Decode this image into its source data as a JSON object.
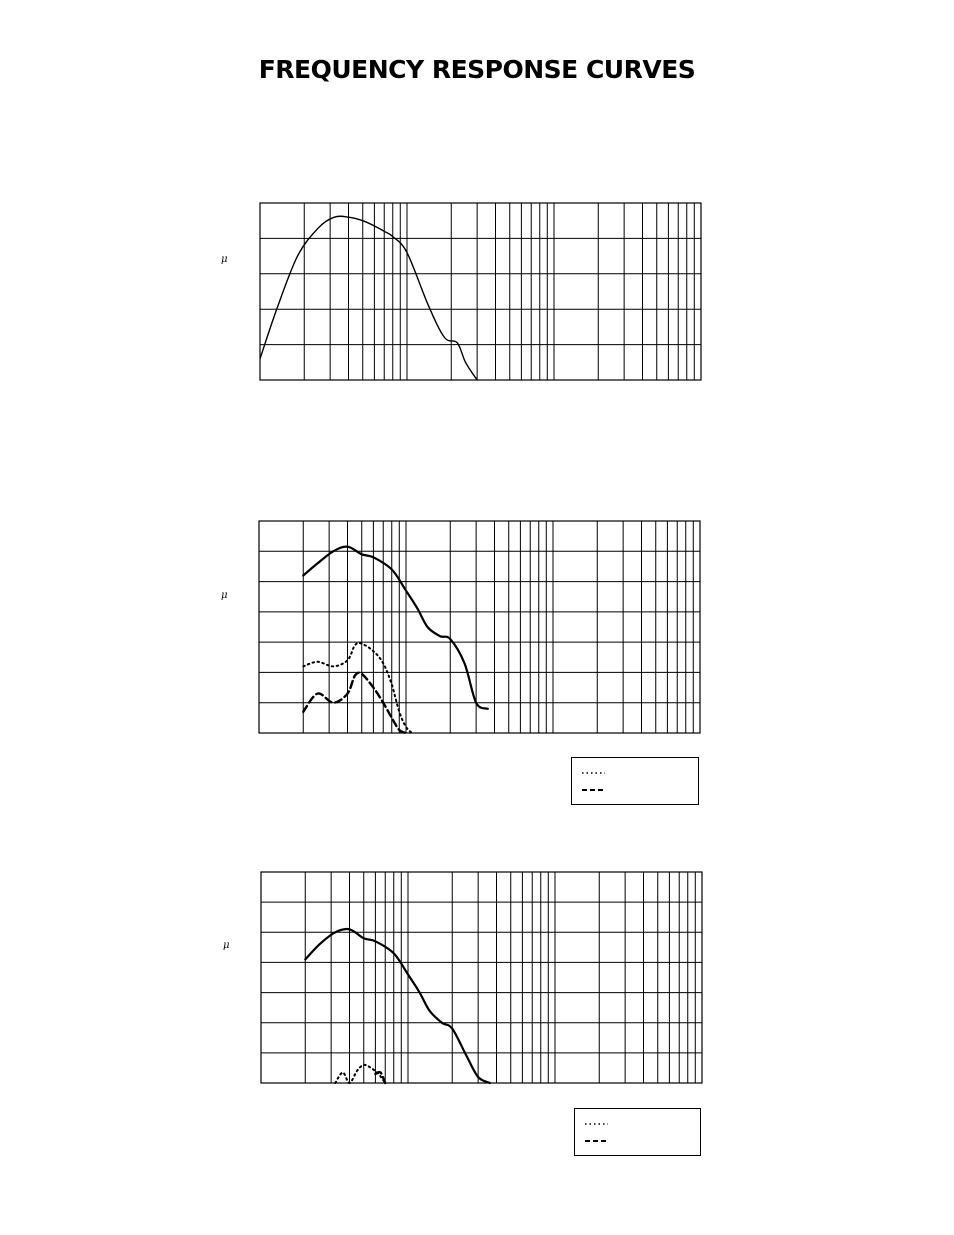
{
  "page": {
    "title": "FREQUENCY RESPONSE CURVES"
  },
  "chart_data": [
    {
      "type": "line",
      "ylabel": "μ",
      "xscale": "log",
      "xlim": [
        1,
        1000
      ],
      "ylim": [
        0,
        5
      ],
      "grid": true,
      "series": [
        {
          "style": "solid",
          "x": [
            1,
            1.3,
            1.8,
            2.5,
            3.2,
            4,
            5,
            6,
            7,
            8,
            10,
            14,
            18,
            22,
            25,
            30
          ],
          "y": [
            0.6,
            2.0,
            3.5,
            4.3,
            4.6,
            4.6,
            4.5,
            4.35,
            4.2,
            4.05,
            3.6,
            2.1,
            1.2,
            1.05,
            0.5,
            0
          ]
        }
      ]
    },
    {
      "type": "line",
      "ylabel": "μ",
      "xscale": "log",
      "xlim": [
        1,
        1000
      ],
      "ylim": [
        0,
        7
      ],
      "grid": true,
      "series": [
        {
          "style": "solid",
          "x": [
            2,
            2.5,
            3.2,
            4,
            5,
            6,
            8,
            10,
            12,
            14,
            17,
            20,
            25,
            30,
            36
          ],
          "y": [
            5.2,
            5.6,
            6.0,
            6.15,
            5.9,
            5.8,
            5.4,
            4.7,
            4.1,
            3.5,
            3.2,
            3.1,
            2.3,
            1.0,
            0.8
          ]
        },
        {
          "style": "dotted",
          "x": [
            2,
            2.5,
            3.2,
            4,
            4.5,
            5,
            6,
            7,
            8,
            9,
            10,
            11
          ],
          "y": [
            2.2,
            2.35,
            2.2,
            2.4,
            2.9,
            2.95,
            2.7,
            2.3,
            1.6,
            0.7,
            0.2,
            0
          ]
        },
        {
          "style": "dashed",
          "x": [
            2,
            2.5,
            3.2,
            4,
            4.5,
            5,
            6,
            7,
            8,
            9,
            10
          ],
          "y": [
            0.7,
            1.3,
            1.0,
            1.3,
            1.9,
            1.95,
            1.5,
            1.0,
            0.5,
            0.1,
            0
          ]
        }
      ],
      "legend": {
        "position": "bottom-right"
      }
    },
    {
      "type": "line",
      "ylabel": "μ",
      "xscale": "log",
      "xlim": [
        1,
        1000
      ],
      "ylim": [
        0,
        7
      ],
      "grid": true,
      "series": [
        {
          "style": "solid",
          "x": [
            2,
            2.5,
            3.2,
            4,
            5,
            6,
            8,
            10,
            12,
            14,
            17,
            20,
            25,
            30,
            36
          ],
          "y": [
            4.1,
            4.6,
            5.0,
            5.1,
            4.8,
            4.7,
            4.3,
            3.6,
            3.0,
            2.4,
            2.0,
            1.8,
            0.9,
            0.2,
            0
          ]
        },
        {
          "style": "dotted",
          "x": [
            3.2,
            3.6,
            4,
            4.5,
            5,
            5.6,
            6.3,
            7
          ],
          "y": [
            0,
            0.35,
            0,
            0.4,
            0.6,
            0.5,
            0.3,
            0
          ]
        },
        {
          "style": "dashed",
          "x": [
            6.0,
            6.5,
            7.0
          ],
          "y": [
            0.3,
            0.35,
            0
          ]
        }
      ],
      "legend": {
        "position": "bottom-right"
      }
    }
  ]
}
